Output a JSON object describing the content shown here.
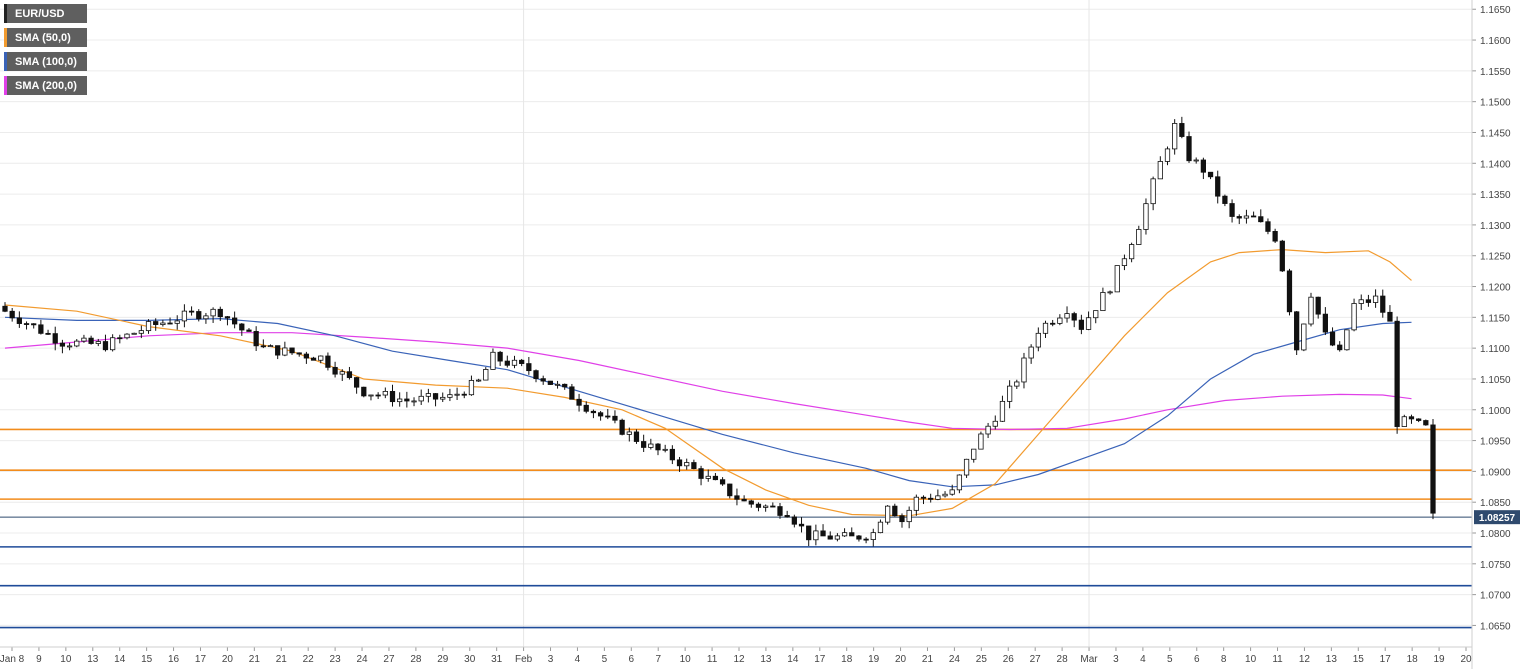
{
  "chart_data": {
    "type": "candlestick",
    "symbol": "EUR/USD",
    "legend": [
      {
        "label": "EUR/USD",
        "color": "#222222"
      },
      {
        "label": "SMA (50,0)",
        "color": "#f29b2f"
      },
      {
        "label": "SMA (100,0)",
        "color": "#3a63b8"
      },
      {
        "label": "SMA (200,0)",
        "color": "#e040e8"
      }
    ],
    "ylim": [
      1.0615,
      1.1665
    ],
    "y_ticks": [
      "1.1650",
      "1.1600",
      "1.1550",
      "1.1500",
      "1.1450",
      "1.1400",
      "1.1350",
      "1.1300",
      "1.1250",
      "1.1200",
      "1.1150",
      "1.1100",
      "1.1050",
      "1.1000",
      "1.0950",
      "1.0900",
      "1.0850",
      "1.0800",
      "1.0750",
      "1.0700",
      "1.0650"
    ],
    "x_ticks": [
      {
        "label": "Jan 8",
        "i": 0
      },
      {
        "label": "9",
        "i": 1
      },
      {
        "label": "10",
        "i": 2
      },
      {
        "label": "13",
        "i": 3
      },
      {
        "label": "14",
        "i": 4
      },
      {
        "label": "15",
        "i": 5
      },
      {
        "label": "16",
        "i": 6
      },
      {
        "label": "17",
        "i": 7
      },
      {
        "label": "20",
        "i": 8
      },
      {
        "label": "21",
        "i": 9
      },
      {
        "label": "21",
        "i": 10
      },
      {
        "label": "22",
        "i": 11
      },
      {
        "label": "23",
        "i": 12
      },
      {
        "label": "24",
        "i": 13
      },
      {
        "label": "27",
        "i": 14
      },
      {
        "label": "28",
        "i": 15
      },
      {
        "label": "29",
        "i": 16
      },
      {
        "label": "30",
        "i": 17
      },
      {
        "label": "31",
        "i": 18
      },
      {
        "label": "Feb",
        "i": 19
      },
      {
        "label": "3",
        "i": 20
      },
      {
        "label": "4",
        "i": 21
      },
      {
        "label": "5",
        "i": 22
      },
      {
        "label": "6",
        "i": 23
      },
      {
        "label": "7",
        "i": 24
      },
      {
        "label": "10",
        "i": 25
      },
      {
        "label": "11",
        "i": 26
      },
      {
        "label": "12",
        "i": 27
      },
      {
        "label": "13",
        "i": 28
      },
      {
        "label": "14",
        "i": 29
      },
      {
        "label": "17",
        "i": 30
      },
      {
        "label": "18",
        "i": 31
      },
      {
        "label": "19",
        "i": 32
      },
      {
        "label": "20",
        "i": 33
      },
      {
        "label": "21",
        "i": 34
      },
      {
        "label": "24",
        "i": 35
      },
      {
        "label": "25",
        "i": 36
      },
      {
        "label": "26",
        "i": 37
      },
      {
        "label": "27",
        "i": 38
      },
      {
        "label": "28",
        "i": 39
      },
      {
        "label": "Mar",
        "i": 40
      },
      {
        "label": "3",
        "i": 41
      },
      {
        "label": "4",
        "i": 42
      },
      {
        "label": "5",
        "i": 43
      },
      {
        "label": "6",
        "i": 44
      },
      {
        "label": "8",
        "i": 45
      },
      {
        "label": "10",
        "i": 46
      },
      {
        "label": "11",
        "i": 47
      },
      {
        "label": "12",
        "i": 48
      },
      {
        "label": "13",
        "i": 49
      },
      {
        "label": "15",
        "i": 50
      },
      {
        "label": "17",
        "i": 51
      },
      {
        "label": "18",
        "i": 52
      },
      {
        "label": "19",
        "i": 53
      },
      {
        "label": "20",
        "i": 54
      }
    ],
    "x_tick_count": 55,
    "n_candles": 200,
    "close_path": [
      [
        0,
        1.116
      ],
      [
        8,
        1.111
      ],
      [
        14,
        1.1105
      ],
      [
        20,
        1.1135
      ],
      [
        26,
        1.1155
      ],
      [
        30,
        1.116
      ],
      [
        36,
        1.11
      ],
      [
        44,
        1.1085
      ],
      [
        50,
        1.103
      ],
      [
        56,
        1.1015
      ],
      [
        62,
        1.102
      ],
      [
        66,
        1.1045
      ],
      [
        68,
        1.1085
      ],
      [
        73,
        1.1065
      ],
      [
        78,
        1.103
      ],
      [
        83,
        1.099
      ],
      [
        89,
        1.0945
      ],
      [
        95,
        1.091
      ],
      [
        99,
        1.088
      ],
      [
        103,
        1.085
      ],
      [
        109,
        1.0835
      ],
      [
        112,
        1.0795
      ],
      [
        118,
        1.0792
      ],
      [
        121,
        1.08
      ],
      [
        123,
        1.085
      ],
      [
        125,
        1.082
      ],
      [
        127,
        1.0855
      ],
      [
        132,
        1.0865
      ],
      [
        135,
        1.094
      ],
      [
        138,
        1.099
      ],
      [
        141,
        1.105
      ],
      [
        144,
        1.113
      ],
      [
        148,
        1.1165
      ],
      [
        150,
        1.1135
      ],
      [
        154,
        1.12
      ],
      [
        158,
        1.13
      ],
      [
        161,
        1.14
      ],
      [
        163,
        1.146
      ],
      [
        165,
        1.141
      ],
      [
        167,
        1.139
      ],
      [
        169,
        1.135
      ],
      [
        171,
        1.131
      ],
      [
        174,
        1.131
      ],
      [
        177,
        1.128
      ],
      [
        178,
        1.123
      ],
      [
        180,
        1.11
      ],
      [
        182,
        1.119
      ],
      [
        184,
        1.112
      ],
      [
        186,
        1.109
      ],
      [
        188,
        1.117
      ],
      [
        191,
        1.118
      ],
      [
        193,
        1.114
      ],
      [
        194,
        1.098
      ],
      [
        196,
        1.098
      ],
      [
        198,
        1.097
      ],
      [
        199,
        1.0826
      ]
    ],
    "sma_50_path": [
      [
        0,
        1.117
      ],
      [
        10,
        1.116
      ],
      [
        20,
        1.1135
      ],
      [
        30,
        1.112
      ],
      [
        40,
        1.1095
      ],
      [
        50,
        1.105
      ],
      [
        60,
        1.104
      ],
      [
        70,
        1.1035
      ],
      [
        78,
        1.102
      ],
      [
        86,
        1.1
      ],
      [
        92,
        1.097
      ],
      [
        100,
        1.0905
      ],
      [
        106,
        1.087
      ],
      [
        112,
        1.0845
      ],
      [
        118,
        1.083
      ],
      [
        126,
        1.0828
      ],
      [
        132,
        1.084
      ],
      [
        138,
        1.088
      ],
      [
        144,
        1.096
      ],
      [
        150,
        1.104
      ],
      [
        156,
        1.112
      ],
      [
        162,
        1.119
      ],
      [
        168,
        1.124
      ],
      [
        172,
        1.1255
      ],
      [
        178,
        1.126
      ],
      [
        184,
        1.1255
      ],
      [
        190,
        1.1258
      ],
      [
        193,
        1.124
      ],
      [
        196,
        1.121
      ]
    ],
    "sma_100_path": [
      [
        0,
        1.115
      ],
      [
        10,
        1.1145
      ],
      [
        20,
        1.1145
      ],
      [
        30,
        1.1148
      ],
      [
        38,
        1.114
      ],
      [
        46,
        1.112
      ],
      [
        54,
        1.1095
      ],
      [
        62,
        1.108
      ],
      [
        70,
        1.1065
      ],
      [
        80,
        1.103
      ],
      [
        90,
        1.0995
      ],
      [
        100,
        1.096
      ],
      [
        110,
        1.093
      ],
      [
        120,
        1.0905
      ],
      [
        126,
        1.0885
      ],
      [
        132,
        1.0875
      ],
      [
        138,
        1.0878
      ],
      [
        144,
        1.0895
      ],
      [
        150,
        1.092
      ],
      [
        156,
        1.0945
      ],
      [
        162,
        1.099
      ],
      [
        168,
        1.105
      ],
      [
        174,
        1.109
      ],
      [
        180,
        1.111
      ],
      [
        186,
        1.113
      ],
      [
        192,
        1.114
      ],
      [
        196,
        1.1142
      ]
    ],
    "sma_200_path": [
      [
        0,
        1.11
      ],
      [
        10,
        1.111
      ],
      [
        20,
        1.112
      ],
      [
        30,
        1.1125
      ],
      [
        40,
        1.1125
      ],
      [
        50,
        1.1118
      ],
      [
        60,
        1.111
      ],
      [
        70,
        1.11
      ],
      [
        80,
        1.108
      ],
      [
        90,
        1.1055
      ],
      [
        100,
        1.103
      ],
      [
        110,
        1.101
      ],
      [
        118,
        1.0995
      ],
      [
        126,
        1.098
      ],
      [
        132,
        1.097
      ],
      [
        140,
        1.0968
      ],
      [
        148,
        1.097
      ],
      [
        156,
        1.0985
      ],
      [
        162,
        1.1
      ],
      [
        170,
        1.1015
      ],
      [
        178,
        1.1022
      ],
      [
        186,
        1.1025
      ],
      [
        192,
        1.1024
      ],
      [
        196,
        1.1018
      ]
    ],
    "horizontal_levels": [
      {
        "value": 1.0968,
        "color": "#f28c1c"
      },
      {
        "value": 1.0902,
        "color": "#f28c1c"
      },
      {
        "value": 1.0855,
        "color": "#f28c1c"
      },
      {
        "value": 1.07775,
        "color": "#1f4b99"
      },
      {
        "value": 1.07145,
        "color": "#1f4b99"
      },
      {
        "value": 1.06465,
        "color": "#1f4b99"
      }
    ],
    "last_price": {
      "value": 1.08257,
      "label": "1.08257",
      "color": "#2f4a6e"
    }
  }
}
